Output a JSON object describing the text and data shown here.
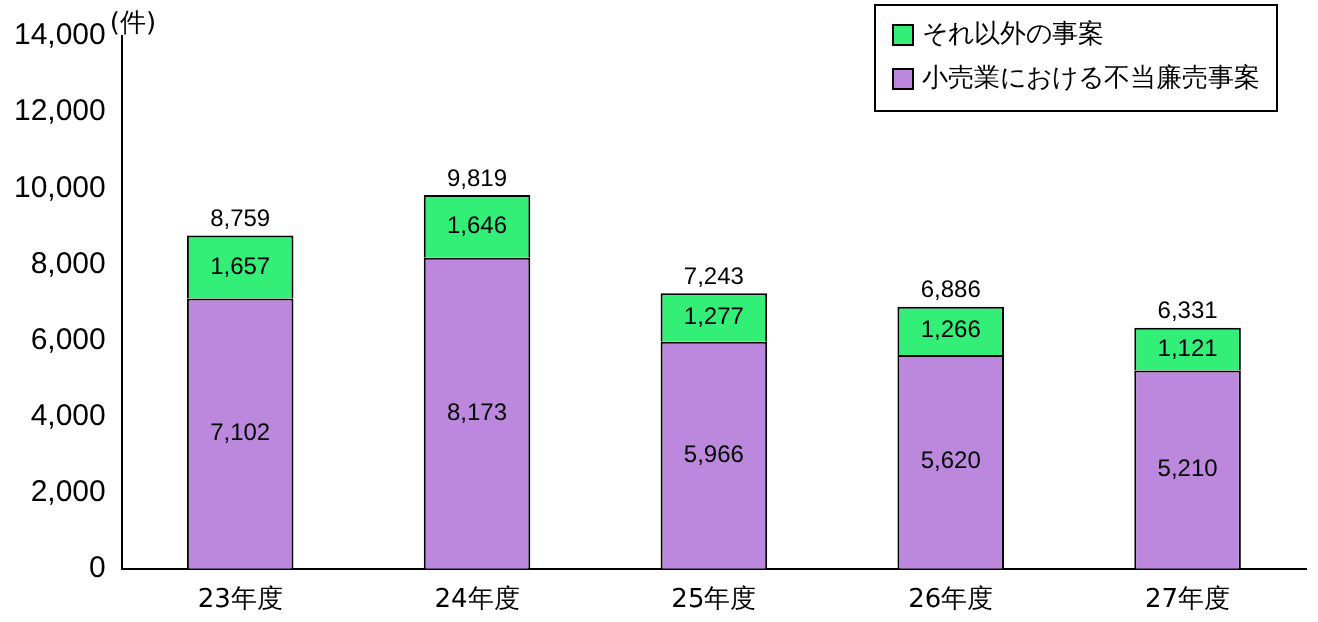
{
  "chart_data": {
    "type": "bar",
    "stacked": true,
    "ylabel": "(件)",
    "categories": [
      "23年度",
      "24年度",
      "25年度",
      "26年度",
      "27年度"
    ],
    "series": [
      {
        "name": "小売業における不当廉売事案",
        "color": "#bb88dd",
        "values": [
          7102,
          8173,
          5966,
          5620,
          5210
        ],
        "value_labels": [
          "7,102",
          "8,173",
          "5,966",
          "5,620",
          "5,210"
        ]
      },
      {
        "name": "それ以外の事案",
        "color": "#33ee77",
        "values": [
          1657,
          1646,
          1277,
          1266,
          1121
        ],
        "value_labels": [
          "1,657",
          "1,646",
          "1,277",
          "1,266",
          "1,121"
        ]
      }
    ],
    "totals": [
      "8,759",
      "9,819",
      "7,243",
      "6,886",
      "6,331"
    ],
    "ylim": [
      0,
      14000
    ],
    "yticks": [
      {
        "value": 0,
        "label": "0"
      },
      {
        "value": 2000,
        "label": "2,000"
      },
      {
        "value": 4000,
        "label": "4,000"
      },
      {
        "value": 6000,
        "label": "6,000"
      },
      {
        "value": 8000,
        "label": "8,000"
      },
      {
        "value": 10000,
        "label": "10,000"
      },
      {
        "value": 12000,
        "label": "12,000"
      },
      {
        "value": 14000,
        "label": "14,000"
      }
    ],
    "grid": false,
    "legend": "top right"
  }
}
